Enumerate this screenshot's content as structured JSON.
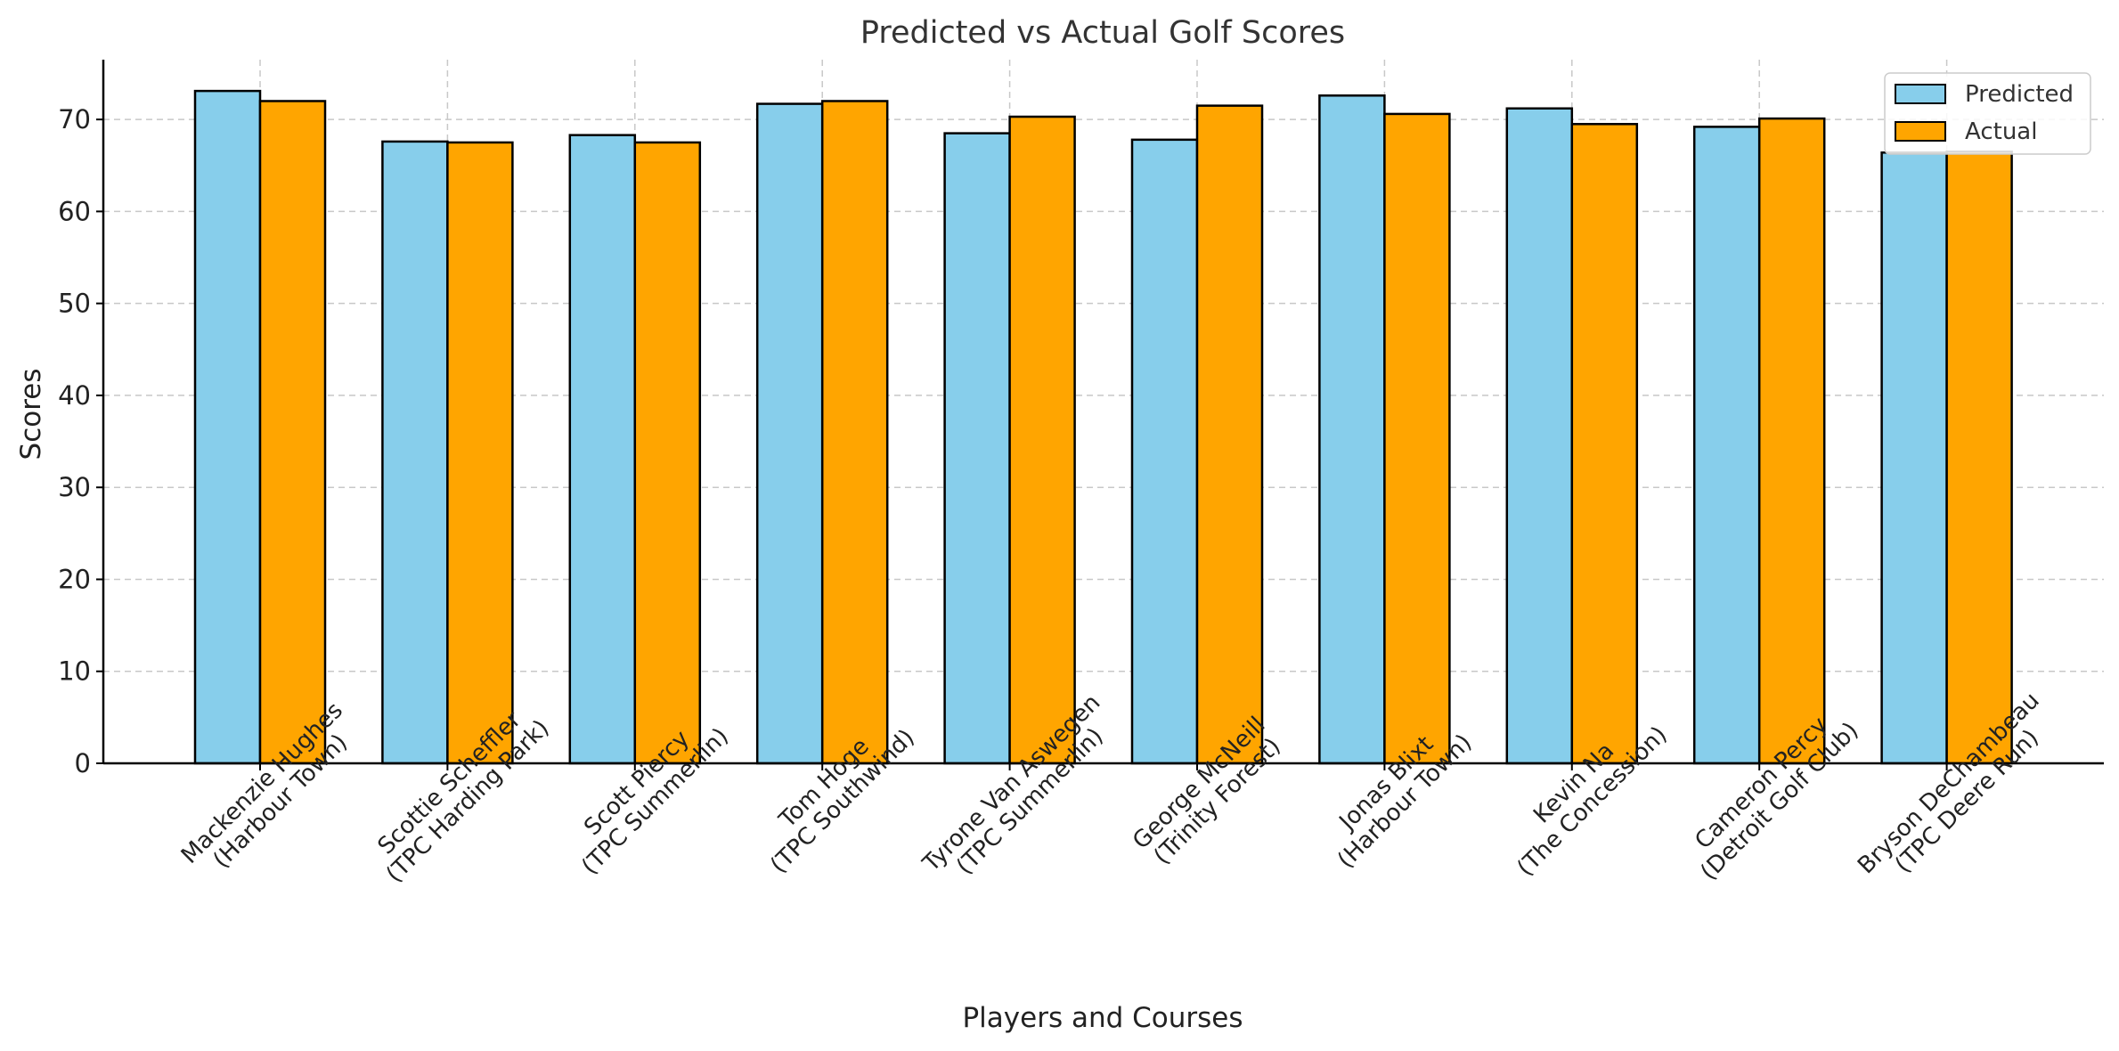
{
  "chart_data": {
    "type": "bar",
    "title": "Predicted vs Actual Golf Scores",
    "xlabel": "Players and Courses",
    "ylabel": "Scores",
    "ylim": [
      0,
      76.5
    ],
    "yticks": [
      0,
      10,
      20,
      30,
      40,
      50,
      60,
      70
    ],
    "grid": true,
    "legend_position": "top-right",
    "categories": [
      [
        "Mackenzie Hughes",
        "(Harbour Town)"
      ],
      [
        "Scottie Scheffler",
        "(TPC Harding Park)"
      ],
      [
        "Scott Piercy",
        "(TPC Summerlin)"
      ],
      [
        "Tom Hoge",
        "(TPC Southwind)"
      ],
      [
        "Tyrone Van Aswegen",
        "(TPC Summerlin)"
      ],
      [
        "George McNeill",
        "(Trinity Forest)"
      ],
      [
        "Jonas Blixt",
        "(Harbour Town)"
      ],
      [
        "Kevin Na",
        "(The Concession)"
      ],
      [
        "Cameron Percy",
        "(Detroit Golf Club)"
      ],
      [
        "Bryson DeChambeau",
        "(TPC Deere Run)"
      ]
    ],
    "series": [
      {
        "name": "Predicted",
        "color": "#87CEEB",
        "values": [
          73.1,
          67.6,
          68.3,
          71.7,
          68.5,
          67.8,
          72.6,
          71.2,
          69.2,
          66.4
        ]
      },
      {
        "name": "Actual",
        "color": "#FFA500",
        "values": [
          72.0,
          67.5,
          67.5,
          72.0,
          70.3,
          71.5,
          70.6,
          69.5,
          70.1,
          66.5
        ]
      }
    ]
  }
}
